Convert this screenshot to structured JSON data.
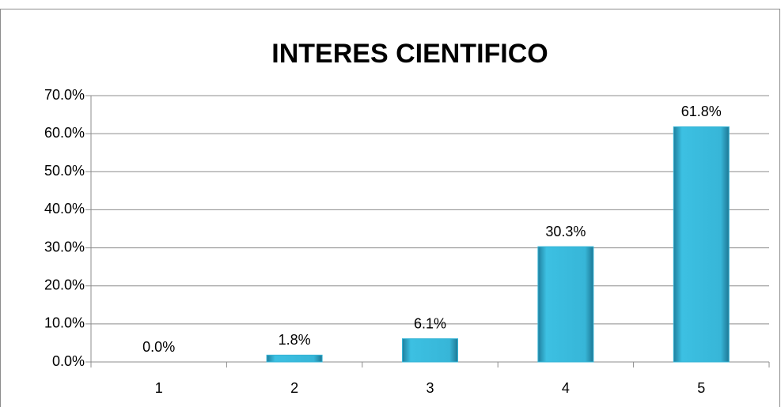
{
  "chart_data": {
    "type": "bar",
    "title": "INTERES CIENTIFICO",
    "categories": [
      "1",
      "2",
      "3",
      "4",
      "5"
    ],
    "values": [
      0,
      1.8,
      6.1,
      30.3,
      61.8
    ],
    "value_labels": [
      "0.0%",
      "1.8%",
      "6.1%",
      "30.3%",
      "61.8%"
    ],
    "color": "#35b4d6",
    "ylim": [
      0,
      70
    ],
    "yticks": [
      {
        "value": 0,
        "label": "0.0%"
      },
      {
        "value": 10,
        "label": "10.0%"
      },
      {
        "value": 20,
        "label": "20.0%"
      },
      {
        "value": 30,
        "label": "30.0%"
      },
      {
        "value": 40,
        "label": "40.0%"
      },
      {
        "value": 50,
        "label": "50.0%"
      },
      {
        "value": 60,
        "label": "60.0%"
      },
      {
        "value": 70,
        "label": "70.0%"
      }
    ],
    "grid": true
  }
}
